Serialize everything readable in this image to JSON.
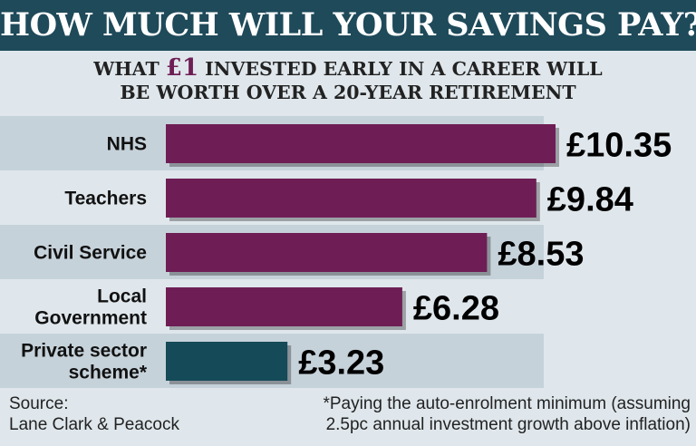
{
  "title": "HOW MUCH WILL YOUR SAVINGS PAY?",
  "subtitle": {
    "line1_before": "WHAT ",
    "line1_highlight": "£1",
    "line1_after": " INVESTED EARLY IN A CAREER WILL",
    "line2": "BE WORTH OVER A 20-YEAR RETIREMENT"
  },
  "chart_data": {
    "type": "bar",
    "orientation": "horizontal",
    "categories": [
      [
        "NHS"
      ],
      [
        "Teachers"
      ],
      [
        "Civil Service"
      ],
      [
        "Local",
        "Government"
      ],
      [
        "Private sector",
        "scheme*"
      ]
    ],
    "values": [
      10.35,
      9.84,
      8.53,
      6.28,
      3.23
    ],
    "value_labels": [
      "£10.35",
      "£9.84",
      "£8.53",
      "£6.28",
      "£3.23"
    ],
    "bar_colors": [
      "#6e1e55",
      "#6e1e55",
      "#6e1e55",
      "#6e1e55",
      "#154a58"
    ],
    "xlim": [
      0,
      10.35
    ],
    "grid": false,
    "legend": "none"
  },
  "source": {
    "line1": "Source:",
    "line2": "Lane Clark & Peacock"
  },
  "footnote": {
    "line1": "*Paying the auto-enrolment minimum (assuming",
    "line2": "2.5pc annual investment growth above inflation)"
  },
  "colors": {
    "banner": "#1e4a5a",
    "background": "#dfe7ec",
    "band": "#c6d2da",
    "highlight": "#6e1e55"
  }
}
